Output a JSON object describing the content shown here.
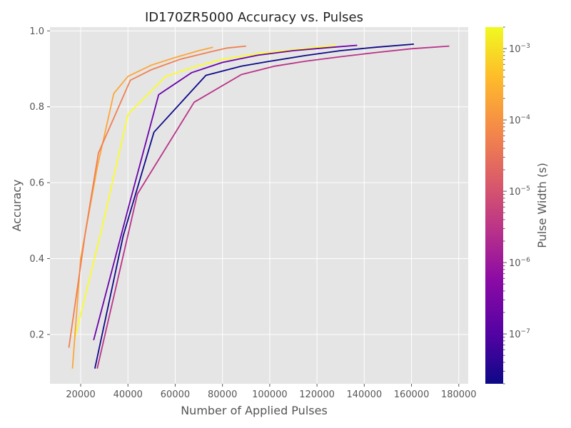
{
  "chart_data": {
    "type": "line",
    "title": "ID170ZR5000 Accuracy vs. Pulses",
    "xlabel": "Number of Applied Pulses",
    "ylabel": "Accuracy",
    "xlim": [
      7000,
      184000
    ],
    "ylim": [
      0.07,
      1.01
    ],
    "xticks": [
      20000,
      40000,
      60000,
      80000,
      100000,
      120000,
      140000,
      160000,
      180000
    ],
    "xtick_labels": [
      "20000",
      "40000",
      "60000",
      "80000",
      "100000",
      "120000",
      "140000",
      "160000",
      "180000"
    ],
    "yticks": [
      0.2,
      0.4,
      0.6,
      0.8,
      1.0
    ],
    "ytick_labels": [
      "0.2",
      "0.4",
      "0.6",
      "0.8",
      "1.0"
    ],
    "grid": true,
    "colorbar": {
      "label": "Pulse Width (s)",
      "scale": "log",
      "colormap": "plasma",
      "range": [
        2e-08,
        0.002
      ],
      "major_ticks": [
        1e-07,
        1e-06,
        1e-05,
        0.0001,
        0.001
      ],
      "tick_bases": [
        "10",
        "10",
        "10",
        "10",
        "10"
      ],
      "tick_exponents": [
        "−7",
        "−6",
        "−5",
        "−4",
        "−3"
      ]
    },
    "series": [
      {
        "color": "#fcfd24",
        "points": [
          [
            17500,
            0.19
          ],
          [
            29000,
            0.48
          ],
          [
            40000,
            0.78
          ],
          [
            56000,
            0.88
          ],
          [
            68000,
            0.905
          ],
          [
            80000,
            0.925
          ],
          [
            95000,
            0.94
          ],
          [
            110000,
            0.95
          ],
          [
            128000,
            0.962
          ]
        ]
      },
      {
        "color": "#fca636",
        "points": [
          [
            16500,
            0.11
          ],
          [
            20000,
            0.4
          ],
          [
            27000,
            0.64
          ],
          [
            34000,
            0.835
          ],
          [
            40000,
            0.88
          ],
          [
            50000,
            0.91
          ],
          [
            60000,
            0.93
          ],
          [
            70000,
            0.948
          ],
          [
            76000,
            0.957
          ]
        ]
      },
      {
        "color": "#f07f4f",
        "points": [
          [
            15000,
            0.165
          ],
          [
            22000,
            0.47
          ],
          [
            27500,
            0.678
          ],
          [
            41000,
            0.87
          ],
          [
            50000,
            0.898
          ],
          [
            62000,
            0.925
          ],
          [
            75000,
            0.945
          ],
          [
            82000,
            0.955
          ],
          [
            90000,
            0.96
          ]
        ]
      },
      {
        "color": "#b93289",
        "points": [
          [
            27000,
            0.11
          ],
          [
            44000,
            0.57
          ],
          [
            68000,
            0.812
          ],
          [
            88000,
            0.885
          ],
          [
            102000,
            0.907
          ],
          [
            115000,
            0.92
          ],
          [
            130000,
            0.932
          ],
          [
            145000,
            0.943
          ],
          [
            160000,
            0.953
          ],
          [
            176000,
            0.96
          ]
        ]
      },
      {
        "color": "#6a00a8",
        "points": [
          [
            25500,
            0.185
          ],
          [
            40000,
            0.53
          ],
          [
            53000,
            0.832
          ],
          [
            67000,
            0.89
          ],
          [
            80000,
            0.917
          ],
          [
            95000,
            0.936
          ],
          [
            110000,
            0.948
          ],
          [
            125000,
            0.956
          ],
          [
            137000,
            0.962
          ]
        ]
      },
      {
        "color": "#0d0887",
        "points": [
          [
            26000,
            0.11
          ],
          [
            38000,
            0.46
          ],
          [
            51000,
            0.733
          ],
          [
            73000,
            0.883
          ],
          [
            88000,
            0.907
          ],
          [
            100000,
            0.92
          ],
          [
            115000,
            0.935
          ],
          [
            130000,
            0.948
          ],
          [
            145000,
            0.957
          ],
          [
            161000,
            0.965
          ]
        ]
      }
    ]
  }
}
